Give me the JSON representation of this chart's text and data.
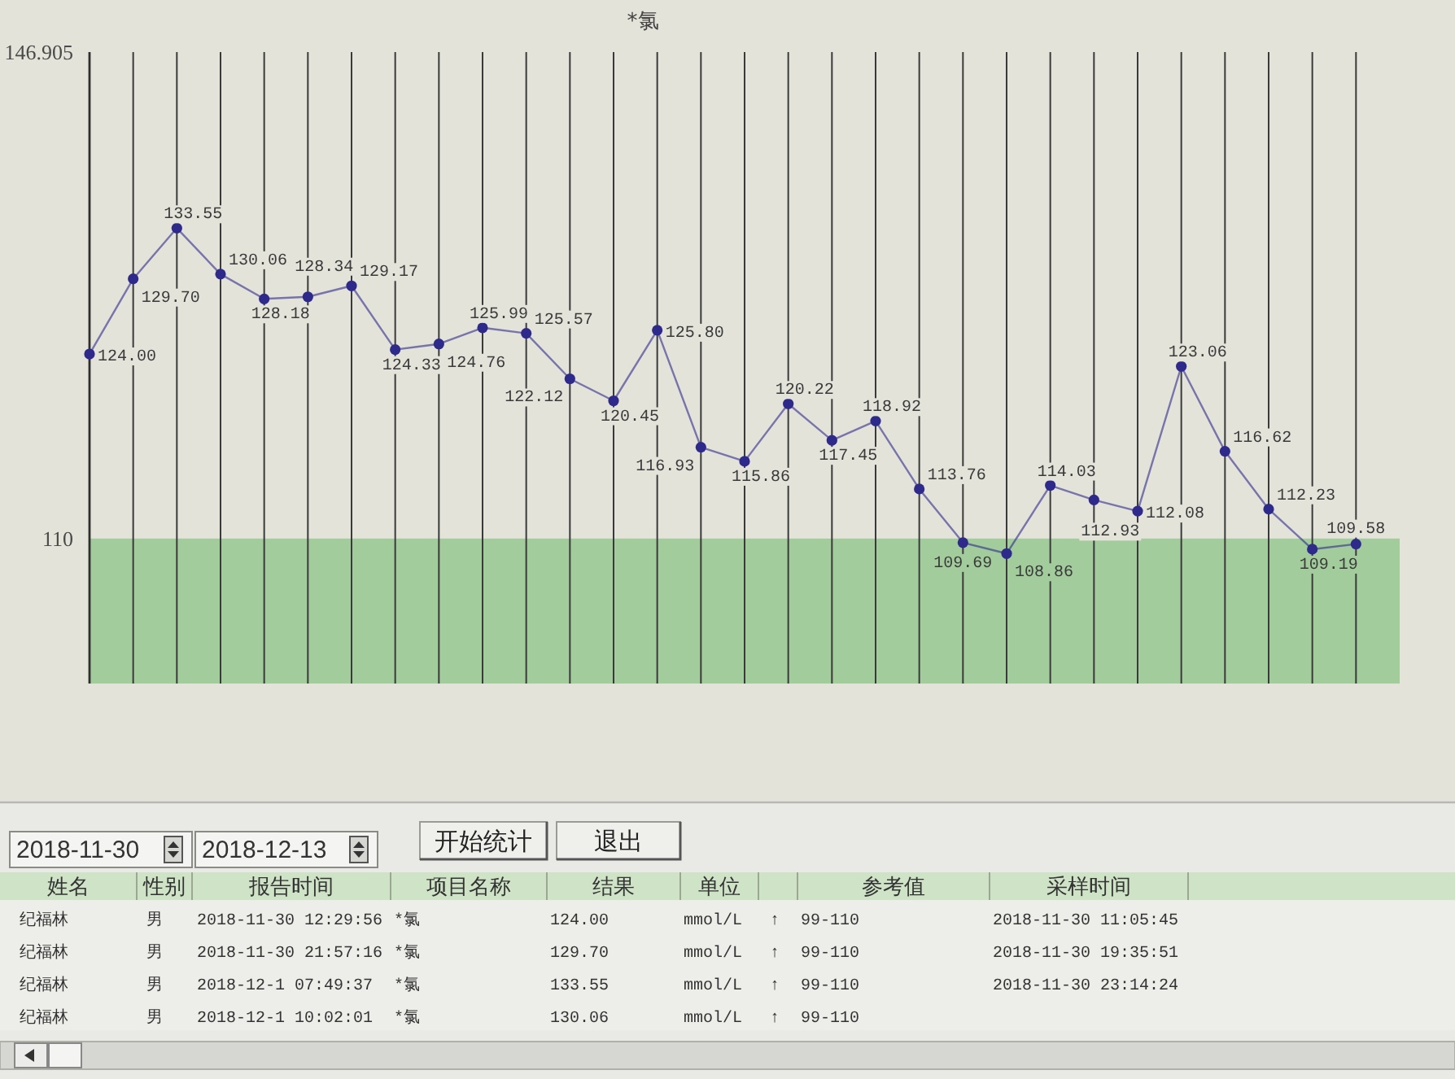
{
  "chart_data": {
    "type": "line",
    "title": "*氯",
    "categories": [
      null,
      null,
      null,
      null,
      null,
      null,
      null,
      null,
      null,
      null,
      null,
      null,
      null,
      null,
      null,
      null,
      null,
      null,
      null,
      null,
      null,
      null,
      null,
      null,
      null,
      null,
      null,
      null,
      null,
      null
    ],
    "series": [
      {
        "color": "#2e2a8c",
        "values": [
          124.0,
          129.7,
          133.55,
          130.06,
          128.18,
          128.34,
          129.17,
          124.33,
          124.76,
          125.99,
          125.57,
          122.12,
          120.45,
          125.8,
          116.93,
          115.86,
          120.22,
          117.45,
          118.92,
          113.76,
          109.69,
          108.86,
          114.03,
          112.93,
          112.08,
          123.06,
          116.62,
          112.23,
          109.19,
          109.58
        ],
        "value_labels": [
          "124.00",
          "129.70",
          "133.55",
          "130.06",
          "128.18",
          "128.34",
          "129.17",
          "124.33",
          "124.76",
          "125.99",
          "125.57",
          "122.12",
          "120.45",
          "125.80",
          "116.93",
          "115.86",
          "120.22",
          "117.45",
          "118.92",
          "113.76",
          "109.69",
          "108.86",
          "114.03",
          "112.93",
          "112.08",
          "123.06",
          "116.62",
          "112.23",
          "109.19",
          "109.58"
        ]
      }
    ],
    "ylim": [
      99,
      146.905
    ],
    "yticks": [
      110,
      146.905
    ],
    "grid": "x",
    "tick_labels": "y",
    "marker": "circle",
    "bands": [
      {
        "axis": "y",
        "from": 99,
        "to": 110,
        "color": "#a3cc9c"
      }
    ],
    "annotations": [
      "2018-11-30",
      "2018-12-13",
      "开始统计",
      "退出",
      "姓名",
      "性别",
      "报告时间",
      "项目名称",
      "结果",
      "单位",
      "参考值",
      "采样时间",
      "纪福林",
      "男",
      "2018-11-30 12:29:56",
      "*氯",
      "124.00",
      "mmol/L",
      "↑",
      "99-110",
      "2018-11-30 11:05:45",
      "纪福林",
      "男",
      "2018-11-30 21:57:16",
      "*氯",
      "129.70",
      "mmol/L",
      "↑",
      "99-110",
      "2018-11-30 19:35:51",
      "纪福林",
      "男",
      "2018-12-1 07:49:37",
      "*氯",
      "133.55",
      "mmol/L",
      "↑",
      "99-110",
      "2018-11-30 23:14:24",
      "纪福林",
      "男",
      "2018-12-1 10:02:01",
      "*氯",
      "130.06",
      "mmol/L",
      "↑",
      "99-110"
    ]
  }
}
